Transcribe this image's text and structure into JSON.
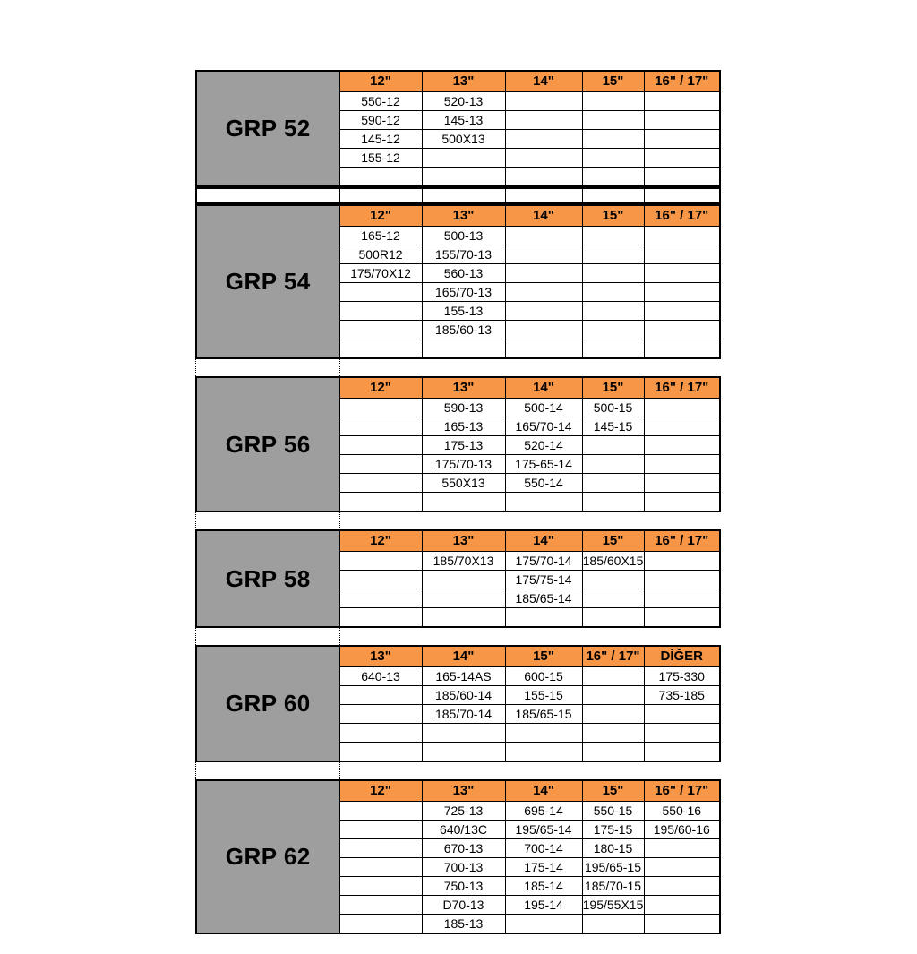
{
  "colors": {
    "header_bg": "#F79646",
    "group_label_bg": "#9E9E9E",
    "border": "#000000",
    "text": "#000000",
    "page_bg": "#ffffff"
  },
  "tables": [
    {
      "label": "GRP 52",
      "headers": [
        "12\"",
        "13\"",
        "14\"",
        "15\"",
        "16\" / 17\""
      ],
      "rows": [
        [
          "550-12",
          "520-13",
          "",
          "",
          ""
        ],
        [
          "590-12",
          "145-13",
          "",
          "",
          ""
        ],
        [
          "145-12",
          "500X13",
          "",
          "",
          ""
        ],
        [
          "155-12",
          "",
          "",
          "",
          ""
        ],
        [
          "",
          "",
          "",
          "",
          ""
        ]
      ],
      "after": "spacer-row"
    },
    {
      "label": "GRP 54",
      "headers": [
        "12\"",
        "13\"",
        "14\"",
        "15\"",
        "16\" / 17\""
      ],
      "rows": [
        [
          "165-12",
          "500-13",
          "",
          "",
          ""
        ],
        [
          "500R12",
          "155/70-13",
          "",
          "",
          ""
        ],
        [
          "175/70X12",
          "560-13",
          "",
          "",
          ""
        ],
        [
          "",
          "165/70-13",
          "",
          "",
          ""
        ],
        [
          "",
          "155-13",
          "",
          "",
          ""
        ],
        [
          "",
          "185/60-13",
          "",
          "",
          ""
        ],
        [
          "",
          "",
          "",
          "",
          ""
        ]
      ],
      "after": "dotted-gap"
    },
    {
      "label": "GRP 56",
      "headers": [
        "12\"",
        "13\"",
        "14\"",
        "15\"",
        "16\" / 17\""
      ],
      "rows": [
        [
          "",
          "590-13",
          "500-14",
          "500-15",
          ""
        ],
        [
          "",
          "165-13",
          "165/70-14",
          "145-15",
          ""
        ],
        [
          "",
          "175-13",
          "520-14",
          "",
          ""
        ],
        [
          "",
          "175/70-13",
          "175-65-14",
          "",
          ""
        ],
        [
          "",
          "550X13",
          "550-14",
          "",
          ""
        ],
        [
          "",
          "",
          "",
          "",
          ""
        ]
      ],
      "after": "dotted-gap"
    },
    {
      "label": "GRP 58",
      "headers": [
        "12\"",
        "13\"",
        "14\"",
        "15\"",
        "16\" / 17\""
      ],
      "rows": [
        [
          "",
          "185/70X13",
          "175/70-14",
          "185/60X15",
          ""
        ],
        [
          "",
          "",
          "175/75-14",
          "",
          ""
        ],
        [
          "",
          "",
          "185/65-14",
          "",
          ""
        ],
        [
          "",
          "",
          "",
          "",
          ""
        ]
      ],
      "after": "dotted-gap"
    },
    {
      "label": "GRP 60",
      "headers": [
        "13\"",
        "14\"",
        "15\"",
        "16\" / 17\"",
        "DİĞER"
      ],
      "rows": [
        [
          "640-13",
          "165-14AS",
          "600-15",
          "",
          "175-330"
        ],
        [
          "",
          "185/60-14",
          "155-15",
          "",
          "735-185"
        ],
        [
          "",
          "185/70-14",
          "185/65-15",
          "",
          ""
        ],
        [
          "",
          "",
          "",
          "",
          ""
        ],
        [
          "",
          "",
          "",
          "",
          ""
        ]
      ],
      "after": "dotted-gap"
    },
    {
      "label": "GRP 62",
      "headers": [
        "12\"",
        "13\"",
        "14\"",
        "15\"",
        "16\" / 17\""
      ],
      "rows": [
        [
          "",
          "725-13",
          "695-14",
          "550-15",
          "550-16"
        ],
        [
          "",
          "640/13C",
          "195/65-14",
          "175-15",
          "195/60-16"
        ],
        [
          "",
          "670-13",
          "700-14",
          "180-15",
          ""
        ],
        [
          "",
          "700-13",
          "175-14",
          "195/65-15",
          ""
        ],
        [
          "",
          "750-13",
          "185-14",
          "185/70-15",
          ""
        ],
        [
          "",
          "D70-13",
          "195-14",
          "195/55X15",
          ""
        ],
        [
          "",
          "185-13",
          "",
          "",
          ""
        ]
      ],
      "after": "none"
    }
  ]
}
